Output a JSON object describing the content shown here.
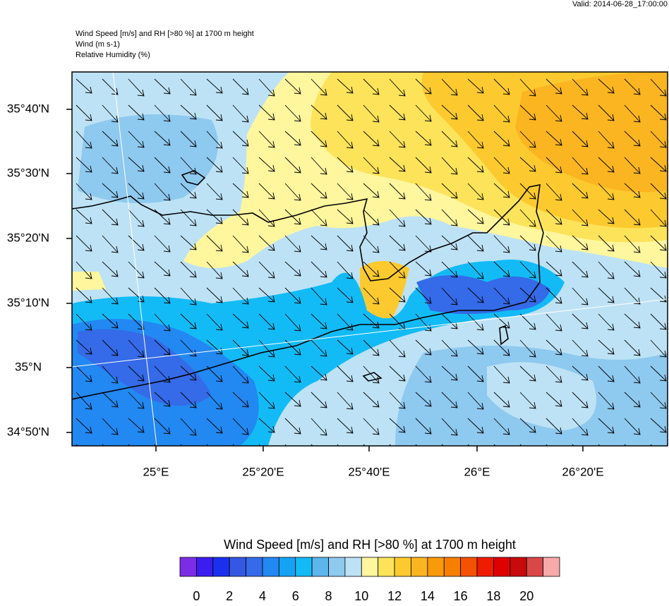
{
  "header": {
    "valid": "Valid: 2014-06-28_17:00:00",
    "lines": [
      "Wind Speed [m/s] and RH [>80 %] at 1700 m height",
      "Wind   (m s-1)",
      "Relative Humidity   (%)"
    ]
  },
  "map": {
    "lat_labels": [
      "35°40'N",
      "35°30'N",
      "35°20'N",
      "35°10'N",
      "35°N",
      "34°50'N"
    ],
    "lon_labels": [
      "25°E",
      "25°20'E",
      "25°40'E",
      "26°E",
      "26°20'E"
    ]
  },
  "colorbar": {
    "title": "Wind Speed [m/s] and RH [>80 %] at 1700 m height",
    "colors": [
      "#7b2de6",
      "#3d1cf0",
      "#1a30f0",
      "#3458e2",
      "#356ae8",
      "#2288f2",
      "#14a2f5",
      "#12bbf6",
      "#5cb6ec",
      "#8ec9ef",
      "#bde2f5",
      "#fff69e",
      "#fde35a",
      "#fcca2e",
      "#fbb520",
      "#f99a0a",
      "#f77f00",
      "#f45200",
      "#ee1c00",
      "#df0000",
      "#c80a0a",
      "#d94848",
      "#f7aaaa"
    ],
    "labels": [
      "0",
      "2",
      "4",
      "6",
      "8",
      "10",
      "12",
      "14",
      "16",
      "18",
      "20"
    ]
  }
}
